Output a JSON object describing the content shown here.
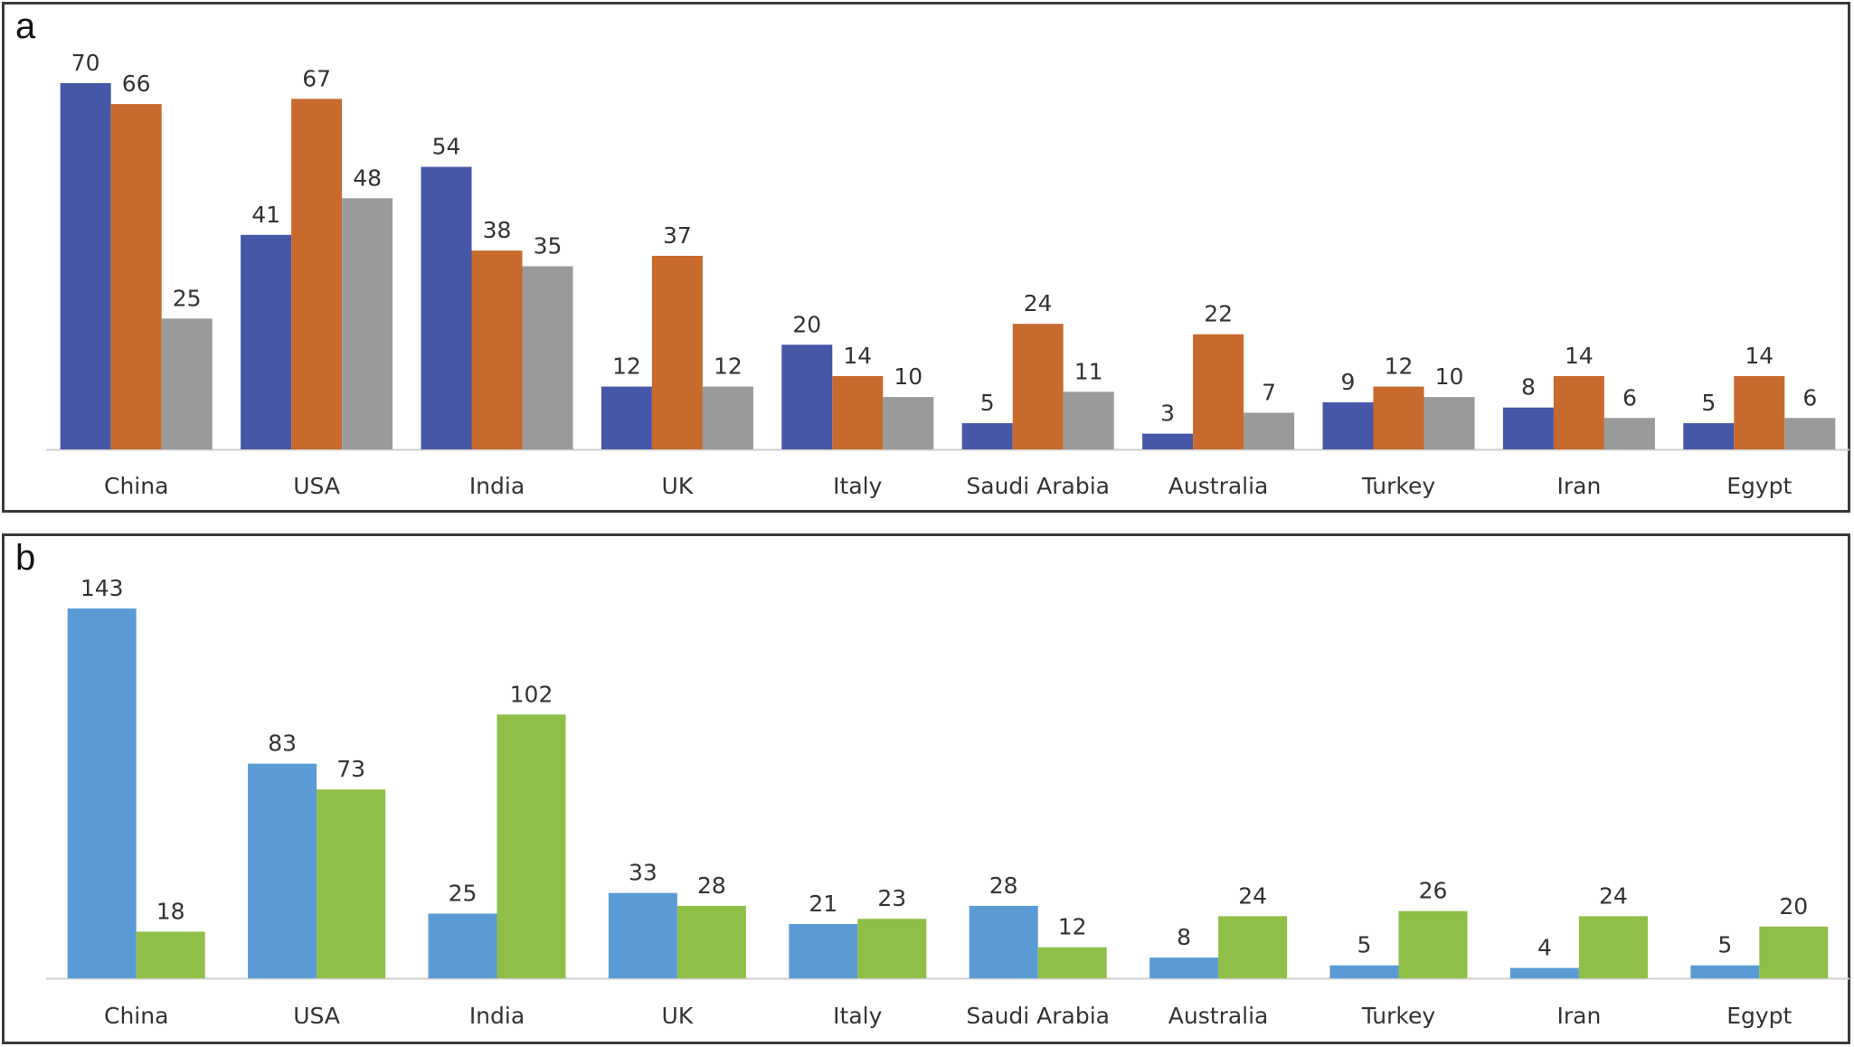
{
  "chart_data": [
    {
      "panel": "a",
      "type": "bar",
      "categories": [
        "China",
        "USA",
        "India",
        "UK",
        "Italy",
        "Saudi Arabia",
        "Australia",
        "Turkey",
        "Iran",
        "Egypt"
      ],
      "series": [
        {
          "values": [
            70,
            41,
            54,
            12,
            20,
            5,
            3,
            9,
            8,
            5
          ],
          "color": "#4657a8"
        },
        {
          "values": [
            66,
            67,
            38,
            37,
            14,
            24,
            22,
            12,
            14,
            14
          ],
          "color": "#c8692e"
        },
        {
          "values": [
            25,
            48,
            35,
            12,
            10,
            11,
            7,
            10,
            6,
            6
          ],
          "color": "#9a9a9a"
        }
      ],
      "ylim": [
        0,
        70
      ],
      "grid": false,
      "legend": false
    },
    {
      "panel": "b",
      "type": "bar",
      "categories": [
        "China",
        "USA",
        "India",
        "UK",
        "Italy",
        "Saudi Arabia",
        "Australia",
        "Turkey",
        "Iran",
        "Egypt"
      ],
      "series": [
        {
          "values": [
            143,
            83,
            25,
            33,
            21,
            28,
            8,
            5,
            4,
            5
          ],
          "color": "#5b9bd5"
        },
        {
          "values": [
            18,
            73,
            102,
            28,
            23,
            12,
            24,
            26,
            24,
            20
          ],
          "color": "#8fbf47"
        }
      ],
      "ylim": [
        0,
        143
      ],
      "grid": false,
      "legend": false
    }
  ]
}
